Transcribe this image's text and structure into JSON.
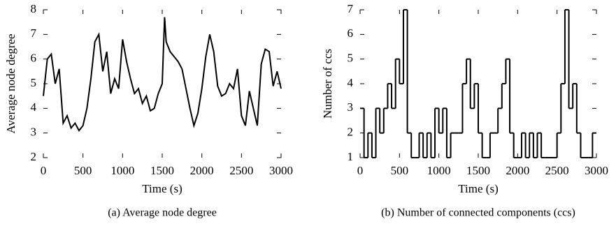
{
  "chart_data": [
    {
      "type": "line",
      "caption": "(a) Average node degree",
      "xlabel": "Time (s)",
      "ylabel": "Average node degree",
      "color": "#000000",
      "x": [
        0,
        50,
        100,
        150,
        200,
        250,
        300,
        350,
        400,
        450,
        500,
        550,
        600,
        650,
        700,
        750,
        800,
        850,
        900,
        950,
        1000,
        1050,
        1100,
        1150,
        1200,
        1250,
        1300,
        1350,
        1400,
        1450,
        1500,
        1530,
        1550,
        1600,
        1650,
        1700,
        1750,
        1800,
        1850,
        1900,
        1950,
        2000,
        2050,
        2100,
        2150,
        2200,
        2250,
        2300,
        2350,
        2400,
        2450,
        2500,
        2550,
        2600,
        2650,
        2700,
        2750,
        2800,
        2850,
        2900,
        2950,
        3000
      ],
      "values": [
        4.5,
        6.0,
        6.2,
        5.0,
        5.6,
        3.4,
        3.7,
        3.2,
        3.4,
        3.1,
        3.3,
        4.0,
        5.2,
        6.7,
        7.0,
        5.5,
        6.3,
        4.6,
        5.2,
        4.8,
        6.8,
        5.9,
        5.2,
        4.6,
        4.8,
        4.2,
        4.5,
        3.9,
        4.0,
        4.6,
        5.0,
        7.7,
        6.7,
        6.3,
        6.1,
        5.9,
        5.6,
        4.8,
        4.0,
        3.3,
        3.8,
        4.8,
        6.1,
        7.0,
        6.3,
        4.9,
        4.5,
        4.6,
        5.0,
        4.8,
        5.6,
        3.7,
        3.3,
        4.7,
        4.0,
        3.3,
        5.8,
        6.4,
        6.3,
        4.9,
        5.5,
        4.8
      ],
      "xlim": [
        0,
        3000
      ],
      "xticks": [
        0,
        500,
        1000,
        1500,
        2000,
        2500,
        3000
      ],
      "ylim": [
        2,
        8
      ],
      "yticks": [
        2,
        3,
        4,
        5,
        6,
        7,
        8
      ]
    },
    {
      "type": "step",
      "caption": "(b) Number of connected components (ccs)",
      "xlabel": "Time (s)",
      "ylabel": "Number of ccs",
      "color": "#000000",
      "x": [
        0,
        50,
        100,
        150,
        200,
        250,
        300,
        350,
        400,
        450,
        500,
        550,
        600,
        650,
        700,
        750,
        800,
        850,
        900,
        950,
        1000,
        1050,
        1100,
        1150,
        1200,
        1250,
        1300,
        1350,
        1400,
        1450,
        1500,
        1550,
        1600,
        1650,
        1700,
        1750,
        1800,
        1850,
        1900,
        1950,
        2000,
        2050,
        2100,
        2150,
        2200,
        2250,
        2300,
        2350,
        2400,
        2450,
        2500,
        2550,
        2600,
        2650,
        2700,
        2750,
        2800,
        2850,
        2900,
        2950,
        3000
      ],
      "values": [
        3,
        1,
        2,
        1,
        3,
        2,
        3,
        4,
        3,
        5,
        4,
        7,
        2,
        1,
        1,
        2,
        1,
        2,
        1,
        3,
        2,
        3,
        1,
        2,
        2,
        2,
        4,
        5,
        3,
        4,
        2,
        1,
        1,
        2,
        2,
        3,
        4,
        5,
        2,
        1,
        1,
        2,
        1,
        2,
        1,
        2,
        1,
        1,
        1,
        1,
        2,
        4,
        7,
        3,
        4,
        2,
        1,
        1,
        1,
        2,
        2
      ],
      "xlim": [
        0,
        3000
      ],
      "xticks": [
        0,
        500,
        1000,
        1500,
        2000,
        2500,
        3000
      ],
      "ylim": [
        1,
        7
      ],
      "yticks": [
        1,
        2,
        3,
        4,
        5,
        6,
        7
      ]
    }
  ]
}
